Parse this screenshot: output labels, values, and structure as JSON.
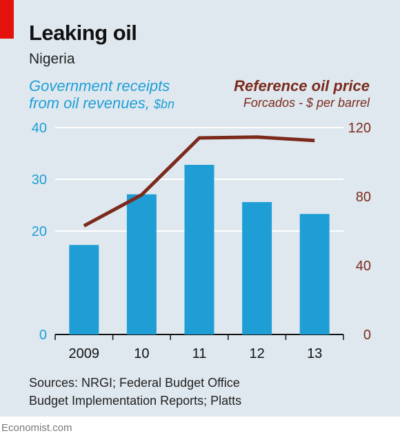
{
  "header": {
    "title": "Leaking oil",
    "subtitle": "Nigeria"
  },
  "legend": {
    "left_line1": "Government receipts",
    "left_line2": "from oil revenues,",
    "left_unit": "$bn",
    "right_line1": "Reference oil price",
    "right_line2": "Forcados - $ per barrel"
  },
  "chart_data": {
    "type": "bar",
    "categories": [
      "2009",
      "10",
      "11",
      "12",
      "13"
    ],
    "series": [
      {
        "name": "Government receipts from oil revenues, $bn",
        "type": "bar",
        "axis": "left",
        "color": "#1f9ed6",
        "values": [
          17.3,
          27.1,
          32.8,
          25.6,
          23.3
        ]
      },
      {
        "name": "Reference oil price, Forcados - $ per barrel",
        "type": "line",
        "axis": "right",
        "color": "#7b2a1c",
        "values": [
          63,
          81,
          114,
          114.5,
          112.5
        ]
      }
    ],
    "y_left": {
      "ylim": [
        0,
        40
      ],
      "ticks": [
        "0",
        "20",
        "30",
        "40"
      ]
    },
    "y_right": {
      "ylim": [
        0,
        120
      ],
      "ticks": [
        "0",
        "40",
        "80",
        "120"
      ]
    },
    "grid": true
  },
  "footer": {
    "sources_line1": "Sources: NRGI; Federal Budget Office",
    "sources_line2": "Budget Implementation Reports; Platts",
    "brand": "Economist.com"
  }
}
